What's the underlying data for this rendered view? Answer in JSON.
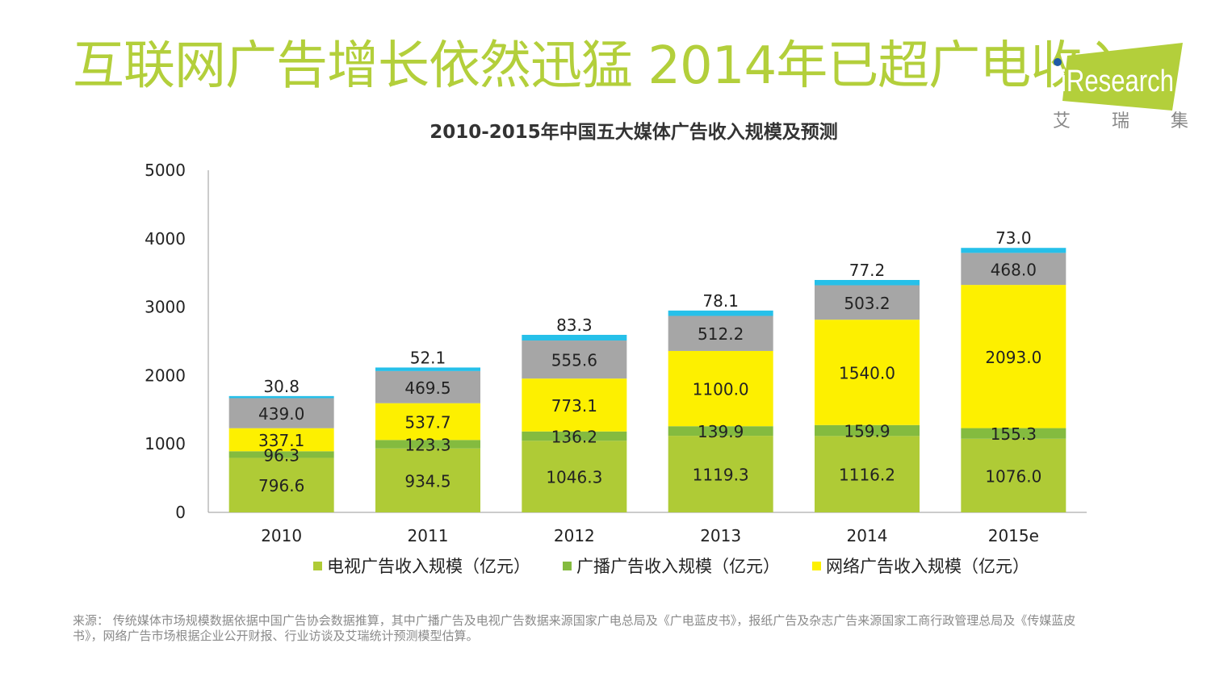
{
  "headline": "互联网广告增长依然迅猛 2014年已超广电收入",
  "logo": {
    "text": "iResearch",
    "subtitle": "艾 瑞 集 团",
    "colors": {
      "bg": "#b3cf3b",
      "dot": "#1f5aa6"
    }
  },
  "chart_data": {
    "type": "bar",
    "stacked": true,
    "title": "2010-2015年中国五大媒体广告收入规模及预测",
    "xlabel": "",
    "ylabel": "",
    "ylim": [
      0,
      5000
    ],
    "yticks": [
      "0",
      "1000",
      "2000",
      "3000",
      "4000",
      "5000"
    ],
    "categories": [
      "2010",
      "2011",
      "2012",
      "2013",
      "2014",
      "2015e"
    ],
    "series": [
      {
        "name": "电视广告收入规模（亿元）",
        "color": "#afcb36",
        "values": [
          796.6,
          934.5,
          1046.3,
          1119.3,
          1116.2,
          1076.0
        ],
        "labels": [
          "796.6",
          "934.5",
          "1046.3",
          "1119.3",
          "1116.2",
          "1076.0"
        ]
      },
      {
        "name": "广播广告收入规模（亿元）",
        "color": "#84bb3f",
        "values": [
          96.3,
          123.3,
          136.2,
          139.9,
          159.9,
          155.3
        ],
        "labels": [
          "96.3",
          "123.3",
          "136.2",
          "139.9",
          "159.9",
          "155.3"
        ]
      },
      {
        "name": "网络广告收入规模（亿元）",
        "color": "#fdf000",
        "values": [
          337.1,
          537.7,
          773.1,
          1100.0,
          1540.0,
          2093.0
        ],
        "labels": [
          "337.1",
          "537.7",
          "773.1",
          "1100.0",
          "1540.0",
          "2093.0"
        ]
      },
      {
        "name": "",
        "color": "#a6a6a6",
        "values": [
          439.0,
          469.5,
          555.6,
          512.2,
          503.2,
          468.0
        ],
        "labels": [
          "439.0",
          "469.5",
          "555.6",
          "512.2",
          "503.2",
          "468.0"
        ]
      },
      {
        "name": "",
        "color": "#26c0e9",
        "values": [
          30.8,
          52.1,
          83.3,
          78.1,
          77.2,
          73.0
        ],
        "labels": [
          "30.8",
          "52.1",
          "83.3",
          "78.1",
          "77.2",
          "73.0"
        ]
      }
    ],
    "legend": [
      "电视广告收入规模（亿元）",
      "广播广告收入规模（亿元）",
      "网络广告收入规模（亿元）"
    ],
    "legend_position": "bottom"
  },
  "source_note": "来源： 传统媒体市场规模数据依据中国广告协会数据推算，其中广播广告及电视广告数据来源国家广电总局及《广电蓝皮书》，报纸广告及杂志广告来源国家工商行政管理总局及《传媒蓝皮书》，网络广告市场根据企业公开财报、行业访谈及艾瑞统计预测模型估算。"
}
